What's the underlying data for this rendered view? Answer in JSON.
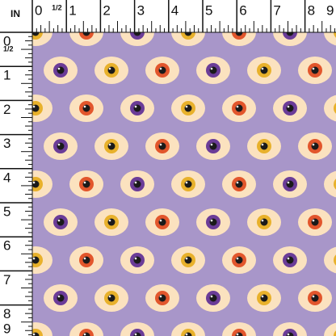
{
  "ruler": {
    "unit": "IN",
    "top": [
      "0",
      "1/2",
      "1",
      "2",
      "3",
      "4",
      "5",
      "6",
      "7",
      "8",
      "9"
    ],
    "left": [
      "0",
      "1/2",
      "1",
      "2",
      "3",
      "4",
      "5",
      "6",
      "7",
      "8",
      "9"
    ]
  }
}
